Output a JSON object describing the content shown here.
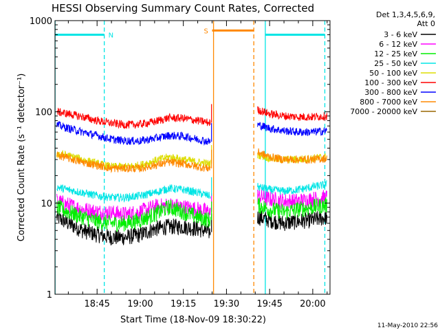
{
  "chart_data": {
    "type": "line",
    "title": "HESSI Observing Summary Count Rates, Corrected",
    "xlabel": "Start Time (18-Nov-09 18:30:22)",
    "ylabel": "Corrected Count Rate (s⁻¹ detector⁻¹)",
    "footer": "11-May-2010 22:56",
    "legend_header": [
      "Det 1,3,4,5,6,9,",
      "Att 0"
    ],
    "y_scale": "log",
    "ylim": [
      1,
      1000
    ],
    "y_ticks": [
      {
        "v": 1,
        "label": "1"
      },
      {
        "v": 10,
        "label": "10"
      },
      {
        "v": 100,
        "label": "100"
      },
      {
        "v": 1000,
        "label": "1000"
      }
    ],
    "xlim_minutes_after_1830": [
      0.37,
      96
    ],
    "x_ticks": [
      {
        "m": 15,
        "label": "18:45"
      },
      {
        "m": 30,
        "label": "19:00"
      },
      {
        "m": 45,
        "label": "19:15"
      },
      {
        "m": 60,
        "label": "19:30"
      },
      {
        "m": 75,
        "label": "19:45"
      },
      {
        "m": 90,
        "label": "20:00"
      }
    ],
    "flags": [
      {
        "label": "N",
        "color": "#00e5e5",
        "bar_minutes": [
          0.37,
          17.5
        ],
        "level": 700,
        "dashed_at": 17.5
      },
      {
        "label": "S",
        "color": "#ff8800",
        "bar_minutes": [
          55,
          69.5
        ],
        "level": 780,
        "dashed_at": 69.5
      }
    ],
    "gaps_minutes": [
      [
        55.5,
        69.5
      ]
    ],
    "saa_lines_minutes": [
      {
        "m": 55.5,
        "color": "#ff8800"
      },
      {
        "m": 73.5,
        "color": "#00e5e5"
      },
      {
        "m": 0.4,
        "color": "#00e5e5"
      },
      {
        "m": 94.2,
        "color": "#00e5e5",
        "dashed": true
      },
      {
        "m": 69.5,
        "color": "#ff8800",
        "dashed": true
      },
      {
        "m": 17.5,
        "color": "#00e5e5",
        "dashed": true
      }
    ],
    "series": [
      {
        "name": "3 - 6 keV",
        "color": "#000000",
        "points": [
          [
            1,
            7
          ],
          [
            5,
            6
          ],
          [
            10,
            5
          ],
          [
            15,
            4.5
          ],
          [
            20,
            4.2
          ],
          [
            25,
            4.2
          ],
          [
            30,
            4.5
          ],
          [
            35,
            5.2
          ],
          [
            40,
            5.5
          ],
          [
            45,
            5.5
          ],
          [
            50,
            5.2
          ],
          [
            54,
            4.8
          ],
          [
            71,
            7
          ],
          [
            75,
            6.5
          ],
          [
            80,
            6
          ],
          [
            85,
            6.3
          ],
          [
            90,
            6.5
          ],
          [
            95,
            7
          ]
        ]
      },
      {
        "name": "6 - 12 keV",
        "color": "#ff00ff",
        "points": [
          [
            1,
            10.5
          ],
          [
            5,
            9.5
          ],
          [
            10,
            8.5
          ],
          [
            15,
            8
          ],
          [
            20,
            7.8
          ],
          [
            25,
            7.5
          ],
          [
            30,
            8
          ],
          [
            35,
            9
          ],
          [
            40,
            9.5
          ],
          [
            45,
            9
          ],
          [
            50,
            8.5
          ],
          [
            54,
            8
          ],
          [
            71,
            12
          ],
          [
            75,
            11
          ],
          [
            80,
            10.5
          ],
          [
            85,
            10.5
          ],
          [
            90,
            11
          ],
          [
            95,
            11.5
          ]
        ]
      },
      {
        "name": "12 - 25 keV",
        "color": "#00ee00",
        "points": [
          [
            1,
            9
          ],
          [
            5,
            8
          ],
          [
            10,
            7
          ],
          [
            15,
            6.3
          ],
          [
            20,
            6
          ],
          [
            25,
            6
          ],
          [
            30,
            6.5
          ],
          [
            35,
            7.5
          ],
          [
            40,
            9
          ],
          [
            45,
            8
          ],
          [
            50,
            7
          ],
          [
            54,
            6.5
          ],
          [
            71,
            9.5
          ],
          [
            75,
            8.5
          ],
          [
            80,
            8
          ],
          [
            85,
            8.5
          ],
          [
            90,
            9
          ],
          [
            95,
            9.5
          ]
        ]
      },
      {
        "name": "25 - 50 keV",
        "color": "#00e5e5",
        "points": [
          [
            1,
            15
          ],
          [
            5,
            14
          ],
          [
            10,
            13
          ],
          [
            15,
            12
          ],
          [
            20,
            11.5
          ],
          [
            25,
            11.5
          ],
          [
            30,
            12
          ],
          [
            35,
            13
          ],
          [
            40,
            14.5
          ],
          [
            45,
            14
          ],
          [
            50,
            13
          ],
          [
            54,
            12
          ],
          [
            71,
            15
          ],
          [
            75,
            14
          ],
          [
            80,
            13.5
          ],
          [
            85,
            14
          ],
          [
            90,
            15
          ],
          [
            95,
            16
          ]
        ]
      },
      {
        "name": "50 - 100 keV",
        "color": "#dddd00",
        "points": [
          [
            1,
            35
          ],
          [
            5,
            33
          ],
          [
            10,
            30
          ],
          [
            15,
            27
          ],
          [
            20,
            25
          ],
          [
            25,
            25
          ],
          [
            30,
            26
          ],
          [
            35,
            29
          ],
          [
            40,
            32
          ],
          [
            45,
            30
          ],
          [
            50,
            28
          ],
          [
            54,
            27
          ],
          [
            71,
            34
          ],
          [
            75,
            31
          ],
          [
            80,
            30
          ],
          [
            85,
            30
          ],
          [
            90,
            31
          ],
          [
            95,
            32
          ]
        ]
      },
      {
        "name": "100 - 300 keV",
        "color": "#ff0000",
        "points": [
          [
            1,
            100
          ],
          [
            5,
            95
          ],
          [
            10,
            88
          ],
          [
            15,
            80
          ],
          [
            20,
            75
          ],
          [
            25,
            72
          ],
          [
            30,
            73
          ],
          [
            35,
            78
          ],
          [
            40,
            86
          ],
          [
            45,
            85
          ],
          [
            50,
            80
          ],
          [
            54,
            76
          ],
          [
            71,
            105
          ],
          [
            75,
            95
          ],
          [
            80,
            90
          ],
          [
            85,
            88
          ],
          [
            90,
            88
          ],
          [
            95,
            90
          ]
        ]
      },
      {
        "name": "300 - 800 keV",
        "color": "#0000ff",
        "points": [
          [
            1,
            72
          ],
          [
            5,
            66
          ],
          [
            10,
            60
          ],
          [
            15,
            55
          ],
          [
            20,
            50
          ],
          [
            25,
            48
          ],
          [
            30,
            48
          ],
          [
            35,
            51
          ],
          [
            40,
            55
          ],
          [
            45,
            54
          ],
          [
            50,
            50
          ],
          [
            54,
            47
          ],
          [
            71,
            72
          ],
          [
            75,
            66
          ],
          [
            80,
            62
          ],
          [
            85,
            60
          ],
          [
            90,
            60
          ],
          [
            95,
            62
          ]
        ]
      },
      {
        "name": "800 - 7000 keV",
        "color": "#ff8800",
        "points": [
          [
            1,
            34
          ],
          [
            5,
            31
          ],
          [
            10,
            28
          ],
          [
            15,
            26
          ],
          [
            20,
            24
          ],
          [
            25,
            24
          ],
          [
            30,
            24
          ],
          [
            35,
            26
          ],
          [
            40,
            28
          ],
          [
            45,
            27
          ],
          [
            50,
            25
          ],
          [
            54,
            24
          ],
          [
            71,
            36
          ],
          [
            75,
            32
          ],
          [
            80,
            30
          ],
          [
            85,
            30
          ],
          [
            90,
            30
          ],
          [
            95,
            31
          ]
        ]
      },
      {
        "name": "7000 - 20000 keV",
        "color": "#996600",
        "points": []
      }
    ]
  }
}
